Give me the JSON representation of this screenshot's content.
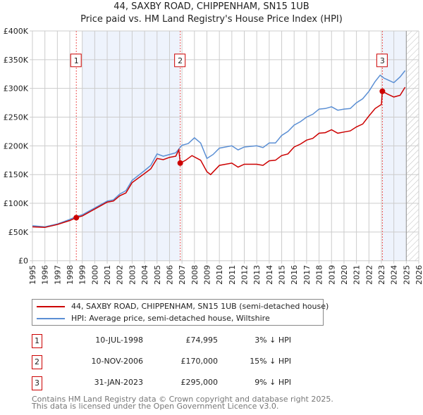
{
  "chart_data": {
    "type": "line",
    "title": "44, SAXBY ROAD, CHIPPENHAM, SN15 1UB",
    "subtitle": "Price paid vs. HM Land Registry's House Price Index (HPI)",
    "xlim": [
      1995,
      2026
    ],
    "ylim": [
      0,
      400000
    ],
    "x_ticks": [
      "1995",
      "1996",
      "1997",
      "1998",
      "1999",
      "2000",
      "2001",
      "2002",
      "2003",
      "2004",
      "2005",
      "2006",
      "2007",
      "2008",
      "2009",
      "2010",
      "2011",
      "2012",
      "2013",
      "2014",
      "2015",
      "2016",
      "2017",
      "2018",
      "2019",
      "2020",
      "2021",
      "2022",
      "2023",
      "2024",
      "2025",
      "2026"
    ],
    "y_ticks": [
      {
        "v": 0,
        "label": "£0"
      },
      {
        "v": 50000,
        "label": "£50K"
      },
      {
        "v": 100000,
        "label": "£100K"
      },
      {
        "v": 150000,
        "label": "£150K"
      },
      {
        "v": 200000,
        "label": "£200K"
      },
      {
        "v": 250000,
        "label": "£250K"
      },
      {
        "v": 300000,
        "label": "£300K"
      },
      {
        "v": 350000,
        "label": "£350K"
      },
      {
        "v": 400000,
        "label": "£400K"
      }
    ],
    "grid": true,
    "shaded_ranges": [
      [
        1999,
        2006.86
      ],
      [
        2023.08,
        2025
      ]
    ],
    "forecast_hatch": [
      2025,
      2026
    ],
    "colors": {
      "price": "#cc0000",
      "hpi": "#5b8fd4",
      "shade": "#eef3fc"
    },
    "series": [
      {
        "name": "44, SAXBY ROAD, CHIPPENHAM, SN15 1UB (semi-detached house)",
        "color": "#cc0000",
        "x": [
          1995,
          1996,
          1997,
          1998,
          1998.52,
          1999,
          2000,
          2001,
          2001.5,
          2002,
          2002.5,
          2003,
          2004,
          2004.5,
          2005,
          2005.5,
          2006,
          2006.5,
          2006.75,
          2006.86,
          2007.3,
          2007.8,
          2008.5,
          2009,
          2009.3,
          2010,
          2010.5,
          2011,
          2011.5,
          2012,
          2012.5,
          2013,
          2013.5,
          2014,
          2014.5,
          2015,
          2015.5,
          2016,
          2016.5,
          2017,
          2017.5,
          2018,
          2018.5,
          2019,
          2019.5,
          2020,
          2020.5,
          2021,
          2021.5,
          2022,
          2022.5,
          2023.0,
          2023.08,
          2023.5,
          2024,
          2024.5,
          2024.9
        ],
        "y": [
          59000,
          58000,
          63000,
          70000,
          74995,
          78000,
          90000,
          102000,
          104000,
          113000,
          118000,
          136000,
          152000,
          160000,
          178000,
          176000,
          180000,
          182000,
          193000,
          170000,
          175000,
          183000,
          175000,
          155000,
          150000,
          166000,
          168000,
          170000,
          163000,
          168000,
          168000,
          168000,
          166000,
          174000,
          175000,
          183000,
          186000,
          198000,
          203000,
          210000,
          213000,
          222000,
          223000,
          228000,
          222000,
          224000,
          226000,
          233000,
          238000,
          252000,
          265000,
          272000,
          295000,
          290000,
          285000,
          288000,
          302000
        ]
      },
      {
        "name": "HPI: Average price, semi-detached house, Wiltshire",
        "color": "#5b8fd4",
        "x": [
          1995,
          1996,
          1997,
          1998,
          1998.5,
          1999,
          2000,
          2001,
          2001.5,
          2002,
          2002.5,
          2003,
          2004,
          2004.5,
          2005,
          2005.5,
          2006,
          2006.5,
          2007,
          2007.5,
          2008,
          2008.5,
          2009,
          2009.5,
          2010,
          2011,
          2011.5,
          2012,
          2013,
          2013.5,
          2014,
          2014.5,
          2015,
          2015.5,
          2016,
          2016.5,
          2017,
          2017.5,
          2018,
          2018.5,
          2019,
          2019.5,
          2020,
          2020.5,
          2021,
          2021.5,
          2022,
          2022.5,
          2022.9,
          2023.2,
          2023.5,
          2024,
          2024.5,
          2024.9
        ],
        "y": [
          61000,
          59000,
          64000,
          72000,
          77000,
          80000,
          92000,
          104000,
          106000,
          116000,
          122000,
          140000,
          157000,
          166000,
          186000,
          182000,
          185000,
          188000,
          201000,
          204000,
          214000,
          205000,
          178000,
          185000,
          196000,
          200000,
          193000,
          198000,
          200000,
          197000,
          205000,
          205000,
          218000,
          225000,
          236000,
          242000,
          250000,
          255000,
          264000,
          265000,
          268000,
          262000,
          264000,
          265000,
          275000,
          282000,
          295000,
          312000,
          323000,
          318000,
          315000,
          310000,
          320000,
          331000
        ]
      }
    ],
    "sales": [
      {
        "n": "1",
        "x": 1998.52,
        "y": 74995
      },
      {
        "n": "2",
        "x": 2006.86,
        "y": 170000
      },
      {
        "n": "3",
        "x": 2023.08,
        "y": 295000
      }
    ]
  },
  "legend": {
    "price_label": "44, SAXBY ROAD, CHIPPENHAM, SN15 1UB (semi-detached house)",
    "hpi_label": "HPI: Average price, semi-detached house, Wiltshire"
  },
  "transactions": [
    {
      "n": "1",
      "date": "10-JUL-1998",
      "price": "£74,995",
      "hpi": "3% ↓ HPI"
    },
    {
      "n": "2",
      "date": "10-NOV-2006",
      "price": "£170,000",
      "hpi": "15% ↓ HPI"
    },
    {
      "n": "3",
      "date": "31-JAN-2023",
      "price": "£295,000",
      "hpi": "9% ↓ HPI"
    }
  ],
  "footer": {
    "line1": "Contains HM Land Registry data © Crown copyright and database right 2025.",
    "line2": "This data is licensed under the Open Government Licence v3.0."
  }
}
